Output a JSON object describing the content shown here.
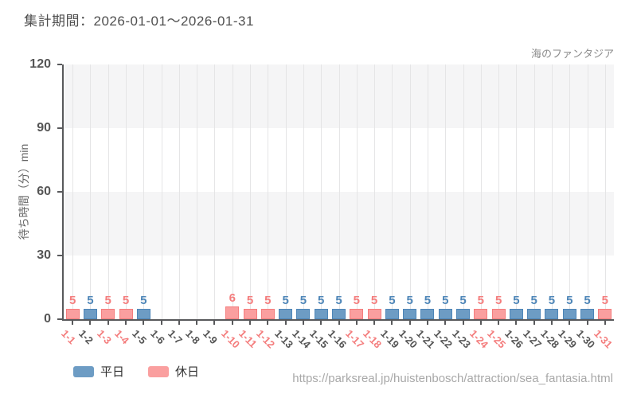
{
  "header": {
    "title": "集計期間：2026-01-01～2026-01-31",
    "attraction": "海のファンタジア"
  },
  "legend": {
    "weekday": "平日",
    "holiday": "休日"
  },
  "footer": {
    "url": "https://parksreal.jp/huistenbosch/attraction/sea_fantasia.html"
  },
  "colors": {
    "weekday_fill": "#6d9cc4",
    "weekday_accent": "#4e86b8",
    "holiday_fill": "#fa9f9f",
    "holiday_accent": "#f47d7d",
    "band_gray": "#f5f5f6",
    "gridline": "#e5e5e6",
    "axis": "#58595b",
    "tick_label": "#555555"
  },
  "chart_data": {
    "type": "bar",
    "title": "海のファンタジア 待ち時間 2026-01-01～2026-01-31",
    "xlabel": "",
    "ylabel": "待ち時間（分）min",
    "ylim": [
      0,
      120
    ],
    "yticks": [
      0,
      30,
      60,
      90,
      120
    ],
    "grid": true,
    "legend_position": "bottom-left",
    "categories": [
      "1-1",
      "1-2",
      "1-3",
      "1-4",
      "1-5",
      "1-6",
      "1-7",
      "1-8",
      "1-9",
      "1-10",
      "1-11",
      "1-12",
      "1-13",
      "1-14",
      "1-15",
      "1-16",
      "1-17",
      "1-18",
      "1-19",
      "1-20",
      "1-21",
      "1-22",
      "1-23",
      "1-24",
      "1-25",
      "1-26",
      "1-27",
      "1-28",
      "1-29",
      "1-30",
      "1-31"
    ],
    "series": [
      {
        "name": "平日",
        "key": "weekday",
        "fill": "#6d9cc4",
        "accent": "#4e86b8",
        "values": [
          null,
          5,
          null,
          null,
          5,
          null,
          null,
          null,
          null,
          null,
          null,
          null,
          5,
          5,
          5,
          5,
          null,
          null,
          5,
          5,
          5,
          5,
          5,
          null,
          null,
          5,
          5,
          5,
          5,
          5,
          null
        ]
      },
      {
        "name": "休日",
        "key": "holiday",
        "fill": "#fa9f9f",
        "accent": "#f47d7d",
        "values": [
          5,
          null,
          5,
          5,
          null,
          null,
          null,
          null,
          null,
          6,
          5,
          5,
          null,
          null,
          null,
          null,
          5,
          5,
          null,
          null,
          null,
          null,
          null,
          5,
          5,
          null,
          null,
          null,
          null,
          null,
          5
        ]
      }
    ]
  }
}
